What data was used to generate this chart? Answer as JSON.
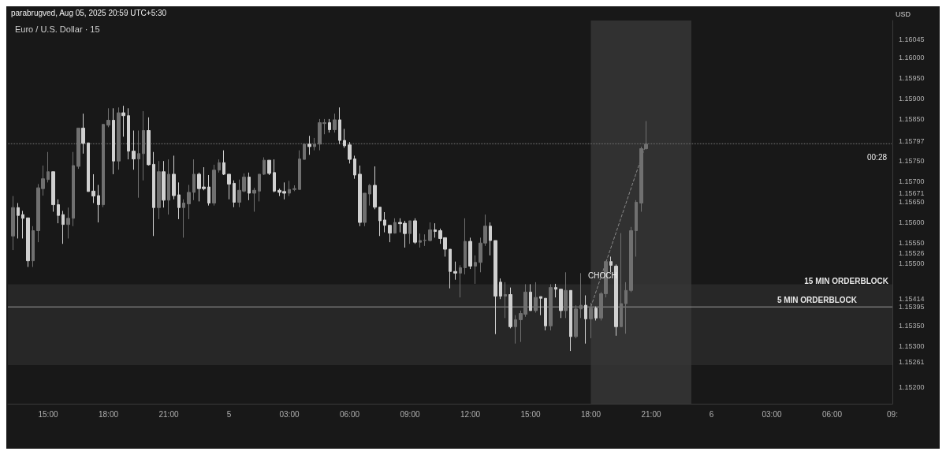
{
  "chart_data": {
    "type": "candlestick",
    "title": "Euro / U.S. Dollar · 15",
    "ylabel": "USD",
    "annotations": [
      "parabrugved, Aug 05, 2025 20:59 UTC+5:30",
      "CHOCH",
      "00:28"
    ],
    "x": [
      "2025-08-04T13:15",
      "2025-08-04T13:30",
      "2025-08-04T13:45",
      "2025-08-04T14:00",
      "2025-08-04T14:15",
      "2025-08-04T14:30",
      "2025-08-04T14:45",
      "2025-08-04T15:00",
      "2025-08-04T15:15",
      "2025-08-04T15:30",
      "2025-08-04T15:45",
      "2025-08-04T16:00",
      "2025-08-04T16:15",
      "2025-08-04T16:30",
      "2025-08-04T16:45",
      "2025-08-04T17:00",
      "2025-08-04T17:15",
      "2025-08-04T17:30",
      "2025-08-04T17:45",
      "2025-08-04T18:00",
      "2025-08-04T18:15",
      "2025-08-04T18:30",
      "2025-08-04T18:45",
      "2025-08-04T19:00",
      "2025-08-04T19:15",
      "2025-08-04T19:30",
      "2025-08-04T19:45",
      "2025-08-04T20:00",
      "2025-08-04T20:15",
      "2025-08-04T20:30",
      "2025-08-04T20:45",
      "2025-08-04T21:00",
      "2025-08-04T21:15",
      "2025-08-04T21:30",
      "2025-08-04T21:45",
      "2025-08-04T22:00",
      "2025-08-04T22:15",
      "2025-08-04T22:30",
      "2025-08-04T22:45",
      "2025-08-04T23:00",
      "2025-08-04T23:15",
      "2025-08-04T23:30",
      "2025-08-04T23:45",
      "2025-08-05T00:00",
      "2025-08-05T00:15",
      "2025-08-05T00:30",
      "2025-08-05T00:45",
      "2025-08-05T01:00",
      "2025-08-05T01:15",
      "2025-08-05T01:30",
      "2025-08-05T01:45",
      "2025-08-05T02:00",
      "2025-08-05T02:15",
      "2025-08-05T02:30",
      "2025-08-05T02:45",
      "2025-08-05T03:00",
      "2025-08-05T03:15",
      "2025-08-05T03:30",
      "2025-08-05T03:45",
      "2025-08-05T04:00",
      "2025-08-05T04:15",
      "2025-08-05T04:30",
      "2025-08-05T04:45",
      "2025-08-05T05:00",
      "2025-08-05T05:15",
      "2025-08-05T05:30",
      "2025-08-05T05:45",
      "2025-08-05T06:00",
      "2025-08-05T06:15",
      "2025-08-05T06:30",
      "2025-08-05T06:45",
      "2025-08-05T07:00",
      "2025-08-05T07:15",
      "2025-08-05T07:30",
      "2025-08-05T07:45",
      "2025-08-05T08:00",
      "2025-08-05T08:15",
      "2025-08-05T08:30",
      "2025-08-05T08:45",
      "2025-08-05T09:00",
      "2025-08-05T09:15",
      "2025-08-05T09:30",
      "2025-08-05T09:45",
      "2025-08-05T10:00",
      "2025-08-05T10:15",
      "2025-08-05T10:30",
      "2025-08-05T10:45",
      "2025-08-05T11:00",
      "2025-08-05T11:15",
      "2025-08-05T11:30",
      "2025-08-05T11:45",
      "2025-08-05T12:00",
      "2025-08-05T12:15",
      "2025-08-05T12:30",
      "2025-08-05T12:45",
      "2025-08-05T13:00",
      "2025-08-05T13:15",
      "2025-08-05T13:30",
      "2025-08-05T13:45",
      "2025-08-05T14:00",
      "2025-08-05T14:15",
      "2025-08-05T14:30",
      "2025-08-05T14:45",
      "2025-08-05T15:00",
      "2025-08-05T15:15",
      "2025-08-05T15:30",
      "2025-08-05T15:45",
      "2025-08-05T16:00",
      "2025-08-05T16:15",
      "2025-08-05T16:30",
      "2025-08-05T16:45",
      "2025-08-05T17:00",
      "2025-08-05T17:15",
      "2025-08-05T17:30",
      "2025-08-05T17:45",
      "2025-08-05T18:00",
      "2025-08-05T18:15",
      "2025-08-05T18:30",
      "2025-08-05T18:45",
      "2025-08-05T19:00",
      "2025-08-05T19:15",
      "2025-08-05T19:30",
      "2025-08-05T19:45",
      "2025-08-05T20:00",
      "2025-08-05T20:15",
      "2025-08-05T20:30",
      "2025-08-05T20:45"
    ],
    "ohlc": [
      [
        1.15567,
        1.15664,
        1.15533,
        1.15636
      ],
      [
        1.15636,
        1.15647,
        1.15561,
        1.15617
      ],
      [
        1.15619,
        1.15628,
        1.15561,
        1.1561
      ],
      [
        1.15611,
        1.15611,
        1.15492,
        1.15507
      ],
      [
        1.15507,
        1.15591,
        1.15492,
        1.1558
      ],
      [
        1.1558,
        1.15693,
        1.15552,
        1.15684
      ],
      [
        1.15682,
        1.15738,
        1.15665,
        1.15706
      ],
      [
        1.15704,
        1.15771,
        1.15697,
        1.15723
      ],
      [
        1.15723,
        1.15723,
        1.15626,
        1.15643
      ],
      [
        1.15643,
        1.15656,
        1.15598,
        1.15617
      ],
      [
        1.15619,
        1.15628,
        1.15548,
        1.15595
      ],
      [
        1.15595,
        1.15636,
        1.15561,
        1.1561
      ],
      [
        1.1561,
        1.15771,
        1.15591,
        1.15738
      ],
      [
        1.15736,
        1.15829,
        1.1573,
        1.15829
      ],
      [
        1.15829,
        1.15864,
        1.15767,
        1.15792
      ],
      [
        1.15793,
        1.15793,
        1.15675,
        1.15675
      ],
      [
        1.15676,
        1.15717,
        1.15647,
        1.15664
      ],
      [
        1.15665,
        1.15691,
        1.156,
        1.15643
      ],
      [
        1.15643,
        1.15838,
        1.15637,
        1.15838
      ],
      [
        1.15836,
        1.15877,
        1.15831,
        1.15848
      ],
      [
        1.15848,
        1.15877,
        1.15717,
        1.15749
      ],
      [
        1.15749,
        1.15879,
        1.15728,
        1.15866
      ],
      [
        1.15866,
        1.15883,
        1.15808,
        1.15859
      ],
      [
        1.15859,
        1.15877,
        1.15753,
        1.15773
      ],
      [
        1.15773,
        1.15823,
        1.15728,
        1.15754
      ],
      [
        1.15754,
        1.15823,
        1.1566,
        1.15767
      ],
      [
        1.15767,
        1.1587,
        1.15702,
        1.15823
      ],
      [
        1.15823,
        1.15855,
        1.15738,
        1.1574
      ],
      [
        1.15741,
        1.15771,
        1.15567,
        1.15636
      ],
      [
        1.15636,
        1.15749,
        1.15608,
        1.15723
      ],
      [
        1.15723,
        1.15749,
        1.15636,
        1.15654
      ],
      [
        1.15654,
        1.15753,
        1.15619,
        1.15717
      ],
      [
        1.15717,
        1.15762,
        1.15656,
        1.15665
      ],
      [
        1.15667,
        1.15697,
        1.15608,
        1.15636
      ],
      [
        1.15636,
        1.15656,
        1.15563,
        1.15647
      ],
      [
        1.15645,
        1.15691,
        1.15608,
        1.15673
      ],
      [
        1.15673,
        1.15753,
        1.15654,
        1.15717
      ],
      [
        1.15717,
        1.15721,
        1.15651,
        1.15682
      ],
      [
        1.15686,
        1.15734,
        1.15678,
        1.15682
      ],
      [
        1.15686,
        1.15715,
        1.15641,
        1.15647
      ],
      [
        1.15647,
        1.1574,
        1.15641,
        1.15727
      ],
      [
        1.15727,
        1.15753,
        1.15721,
        1.15745
      ],
      [
        1.15745,
        1.15775,
        1.15715,
        1.15717
      ],
      [
        1.15717,
        1.15717,
        1.15656,
        1.15693
      ],
      [
        1.15695,
        1.15702,
        1.15637,
        1.15649
      ],
      [
        1.15649,
        1.15704,
        1.15637,
        1.15678
      ],
      [
        1.15676,
        1.15719,
        1.15673,
        1.1571
      ],
      [
        1.1571,
        1.15721,
        1.15654,
        1.15671
      ],
      [
        1.15671,
        1.15684,
        1.15626,
        1.15678
      ],
      [
        1.15676,
        1.15717,
        1.15651,
        1.15717
      ],
      [
        1.15717,
        1.15758,
        1.15715,
        1.15751
      ],
      [
        1.15751,
        1.15751,
        1.15715,
        1.15719
      ],
      [
        1.15721,
        1.15753,
        1.15673,
        1.15676
      ],
      [
        1.15678,
        1.15682,
        1.15664,
        1.15673
      ],
      [
        1.15675,
        1.15697,
        1.15656,
        1.15671
      ],
      [
        1.15671,
        1.15701,
        1.15664,
        1.1568
      ],
      [
        1.1568,
        1.1569,
        1.15676,
        1.15682
      ],
      [
        1.1568,
        1.15775,
        1.1568,
        1.15754
      ],
      [
        1.15753,
        1.1579,
        1.15753,
        1.1579
      ],
      [
        1.1579,
        1.1581,
        1.15764,
        1.15784
      ],
      [
        1.15784,
        1.15805,
        1.15775,
        1.1579
      ],
      [
        1.1579,
        1.15851,
        1.15775,
        1.15842
      ],
      [
        1.1584,
        1.15851,
        1.15814,
        1.15842
      ],
      [
        1.15842,
        1.15851,
        1.15818,
        1.15825
      ],
      [
        1.15825,
        1.15864,
        1.15818,
        1.15849
      ],
      [
        1.15849,
        1.15879,
        1.1579,
        1.15799
      ],
      [
        1.15799,
        1.15827,
        1.15781,
        1.15786
      ],
      [
        1.15788,
        1.15795,
        1.15743,
        1.15753
      ],
      [
        1.15754,
        1.15762,
        1.15706,
        1.15715
      ],
      [
        1.15717,
        1.15738,
        1.15591,
        1.156
      ],
      [
        1.156,
        1.15671,
        1.15591,
        1.15671
      ],
      [
        1.15669,
        1.15693,
        1.15641,
        1.1569
      ],
      [
        1.1569,
        1.15736,
        1.15632,
        1.15637
      ],
      [
        1.15637,
        1.15637,
        1.15567,
        1.15604
      ],
      [
        1.15606,
        1.15625,
        1.15576,
        1.15593
      ],
      [
        1.15593,
        1.15593,
        1.15552,
        1.15574
      ],
      [
        1.15574,
        1.1561,
        1.15573,
        1.156
      ],
      [
        1.156,
        1.1561,
        1.15576,
        1.15597
      ],
      [
        1.15598,
        1.15604,
        1.15539,
        1.15573
      ],
      [
        1.15573,
        1.15604,
        1.15548,
        1.15604
      ],
      [
        1.15604,
        1.1561,
        1.15548,
        1.15552
      ],
      [
        1.15552,
        1.15573,
        1.15539,
        1.15556
      ],
      [
        1.15556,
        1.15571,
        1.15543,
        1.15557
      ],
      [
        1.15556,
        1.156,
        1.15554,
        1.15582
      ],
      [
        1.15582,
        1.15598,
        1.15563,
        1.15578
      ],
      [
        1.1558,
        1.15585,
        1.15548,
        1.15561
      ],
      [
        1.15563,
        1.15563,
        1.15517,
        1.15535
      ],
      [
        1.15535,
        1.15535,
        1.1544,
        1.15481
      ],
      [
        1.15481,
        1.15505,
        1.15461,
        1.15477
      ],
      [
        1.15477,
        1.15496,
        1.15418,
        1.1549
      ],
      [
        1.1549,
        1.1561,
        1.15474,
        1.15554
      ],
      [
        1.15554,
        1.15563,
        1.15487,
        1.15494
      ],
      [
        1.15494,
        1.1552,
        1.15451,
        1.15503
      ],
      [
        1.15503,
        1.15563,
        1.15479,
        1.1555
      ],
      [
        1.1555,
        1.15619,
        1.15543,
        1.15591
      ],
      [
        1.15591,
        1.156,
        1.1552,
        1.15556
      ],
      [
        1.15556,
        1.15556,
        1.15329,
        1.15421
      ],
      [
        1.15455,
        1.15464,
        1.15414,
        1.15421
      ],
      [
        1.15421,
        1.15455,
        1.15368,
        1.15425
      ],
      [
        1.15425,
        1.15442,
        1.15343,
        1.15347
      ],
      [
        1.15347,
        1.15375,
        1.15306,
        1.15364
      ],
      [
        1.15364,
        1.15386,
        1.1531,
        1.15379
      ],
      [
        1.15377,
        1.1545,
        1.15371,
        1.15431
      ],
      [
        1.15431,
        1.1545,
        1.15386,
        1.15386
      ],
      [
        1.15386,
        1.15455,
        1.15381,
        1.15418
      ],
      [
        1.1542,
        1.1542,
        1.15375,
        1.15416
      ],
      [
        1.15416,
        1.15416,
        1.15338,
        1.15349
      ],
      [
        1.15349,
        1.1545,
        1.15338,
        1.15442
      ],
      [
        1.15442,
        1.15451,
        1.15418,
        1.15438
      ],
      [
        1.15438,
        1.15438,
        1.15368,
        1.15386
      ],
      [
        1.15386,
        1.15479,
        1.15368,
        1.15435
      ],
      [
        1.15435,
        1.15435,
        1.15288,
        1.15323
      ],
      [
        1.15323,
        1.15399,
        1.15319,
        1.1539
      ],
      [
        1.1539,
        1.15477,
        1.15368,
        1.15399
      ],
      [
        1.15399,
        1.15423,
        1.15306,
        1.15366
      ],
      [
        1.15366,
        1.15405,
        1.15319,
        1.15392
      ],
      [
        1.15392,
        1.15396,
        1.15362,
        1.15368
      ],
      [
        1.15368,
        1.15431,
        1.15362,
        1.15427
      ],
      [
        1.15427,
        1.15507,
        1.15418,
        1.15505
      ],
      [
        1.15505,
        1.15517,
        1.15479,
        1.15496
      ],
      [
        1.15494,
        1.15498,
        1.15325,
        1.15347
      ],
      [
        1.15347,
        1.15574,
        1.15347,
        1.15403
      ],
      [
        1.15403,
        1.15455,
        1.1533,
        1.15435
      ],
      [
        1.15435,
        1.15589,
        1.15431,
        1.1558
      ],
      [
        1.1558,
        1.15654,
        1.15517,
        1.15649
      ],
      [
        1.15647,
        1.15784,
        1.15626,
        1.15779
      ],
      [
        1.15779,
        1.15846,
        1.15777,
        1.1579
      ]
    ],
    "colors": [
      "#707070",
      "#d0d0d0",
      "#d0d0d0",
      "#d0d0d0",
      "#707070",
      "#707070",
      "#707070",
      "#707070",
      "#d0d0d0",
      "#d0d0d0",
      "#d0d0d0",
      "#707070",
      "#707070",
      "#707070",
      "#d0d0d0",
      "#d0d0d0",
      "#d0d0d0",
      "#d0d0d0",
      "#707070",
      "#707070",
      "#d0d0d0",
      "#707070",
      "#d0d0d0",
      "#d0d0d0",
      "#d0d0d0",
      "#707070",
      "#707070",
      "#d0d0d0",
      "#d0d0d0",
      "#707070",
      "#d0d0d0",
      "#707070",
      "#d0d0d0",
      "#d0d0d0",
      "#707070",
      "#707070",
      "#707070",
      "#d0d0d0",
      "#d0d0d0",
      "#d0d0d0",
      "#707070",
      "#707070",
      "#d0d0d0",
      "#d0d0d0",
      "#d0d0d0",
      "#707070",
      "#707070",
      "#d0d0d0",
      "#707070",
      "#707070",
      "#707070",
      "#d0d0d0",
      "#d0d0d0",
      "#d0d0d0",
      "#d0d0d0",
      "#707070",
      "#707070",
      "#707070",
      "#707070",
      "#d0d0d0",
      "#707070",
      "#707070",
      "#707070",
      "#d0d0d0",
      "#707070",
      "#d0d0d0",
      "#d0d0d0",
      "#d0d0d0",
      "#d0d0d0",
      "#d0d0d0",
      "#707070",
      "#707070",
      "#d0d0d0",
      "#d0d0d0",
      "#d0d0d0",
      "#d0d0d0",
      "#707070",
      "#d0d0d0",
      "#d0d0d0",
      "#707070",
      "#d0d0d0",
      "#707070",
      "#707070",
      "#707070",
      "#d0d0d0",
      "#d0d0d0",
      "#d0d0d0",
      "#d0d0d0",
      "#d0d0d0",
      "#707070",
      "#707070",
      "#d0d0d0",
      "#707070",
      "#707070",
      "#707070",
      "#d0d0d0",
      "#d0d0d0",
      "#d0d0d0",
      "#707070",
      "#d0d0d0",
      "#707070",
      "#707070",
      "#707070",
      "#d0d0d0",
      "#707070",
      "#d0d0d0",
      "#d0d0d0",
      "#707070",
      "#d0d0d0",
      "#d0d0d0",
      "#707070",
      "#d0d0d0",
      "#707070",
      "#707070",
      "#d0d0d0",
      "#707070",
      "#d0d0d0",
      "#707070",
      "#707070",
      "#d0d0d0",
      "#d0d0d0",
      "#707070",
      "#707070",
      "#707070",
      "#707070",
      "#707070",
      "#707070"
    ],
    "series": [
      {
        "type": "line",
        "color": "#8a8a8a",
        "line_style": "dashed",
        "x": [
          "2025-08-05T18:00",
          "2025-08-05T20:45"
        ],
        "values": [
          1.15395,
          1.15791
        ]
      }
    ],
    "bands": [
      {
        "axis": "y",
        "from": 1.15254,
        "to": 1.1545,
        "label": "15 MIN ORDERBLOCK",
        "color": "#2c2c2c"
      },
      {
        "axis": "x",
        "from": "2025-08-05T18:00",
        "to": "2025-08-05T23:00",
        "color": "#3a3a3a"
      }
    ],
    "ref_lines": [
      {
        "axis": "y",
        "value": 1.15791,
        "color": "#777777",
        "line_style": "dotted"
      },
      {
        "axis": "y",
        "value": 1.15395,
        "label": "5 MIN ORDERBLOCK",
        "color": "#9a9a9a",
        "line_style": "solid"
      }
    ],
    "xlim": [
      "2025-08-04T13:00",
      "2025-08-06T09:00"
    ],
    "xticks": [
      {
        "value": "2025-08-04T15:00",
        "label": "15:00"
      },
      {
        "value": "2025-08-04T18:00",
        "label": "18:00"
      },
      {
        "value": "2025-08-04T21:00",
        "label": "21:00"
      },
      {
        "value": "2025-08-05T00:00",
        "label": "5"
      },
      {
        "value": "2025-08-05T03:00",
        "label": "03:00"
      },
      {
        "value": "2025-08-05T06:00",
        "label": "06:00"
      },
      {
        "value": "2025-08-05T09:00",
        "label": "09:00"
      },
      {
        "value": "2025-08-05T12:00",
        "label": "12:00"
      },
      {
        "value": "2025-08-05T15:00",
        "label": "15:00"
      },
      {
        "value": "2025-08-05T18:00",
        "label": "18:00"
      },
      {
        "value": "2025-08-05T21:00",
        "label": "21:00"
      },
      {
        "value": "2025-08-06T00:00",
        "label": "6"
      },
      {
        "value": "2025-08-06T03:00",
        "label": "03:00"
      },
      {
        "value": "2025-08-06T06:00",
        "label": "06:00"
      },
      {
        "value": "2025-08-06T09:00",
        "label": "09:"
      }
    ],
    "ylim": [
      1.1516,
      1.1609
    ],
    "yticks": [
      {
        "value": 1.152,
        "label": "1.15200"
      },
      {
        "value": 1.15261,
        "label": "1.15261"
      },
      {
        "value": 1.153,
        "label": "1.15300"
      },
      {
        "value": 1.1535,
        "label": "1.15350"
      },
      {
        "value": 1.15395,
        "label": "1.15395"
      },
      {
        "value": 1.15414,
        "label": "1.15414"
      },
      {
        "value": 1.155,
        "label": "1.15500"
      },
      {
        "value": 1.15526,
        "label": "1.15526"
      },
      {
        "value": 1.1555,
        "label": "1.15550"
      },
      {
        "value": 1.156,
        "label": "1.15600"
      },
      {
        "value": 1.1565,
        "label": "1.15650"
      },
      {
        "value": 1.15671,
        "label": "1.15671"
      },
      {
        "value": 1.157,
        "label": "1.15700"
      },
      {
        "value": 1.1575,
        "label": "1.15750"
      },
      {
        "value": 1.15797,
        "label": "1.15797"
      },
      {
        "value": 1.1585,
        "label": "1.15850"
      },
      {
        "value": 1.159,
        "label": "1.15900"
      },
      {
        "value": 1.1595,
        "label": "1.15950"
      },
      {
        "value": 1.16,
        "label": "1.16000"
      },
      {
        "value": 1.16045,
        "label": "1.16045"
      }
    ],
    "grid": false
  }
}
